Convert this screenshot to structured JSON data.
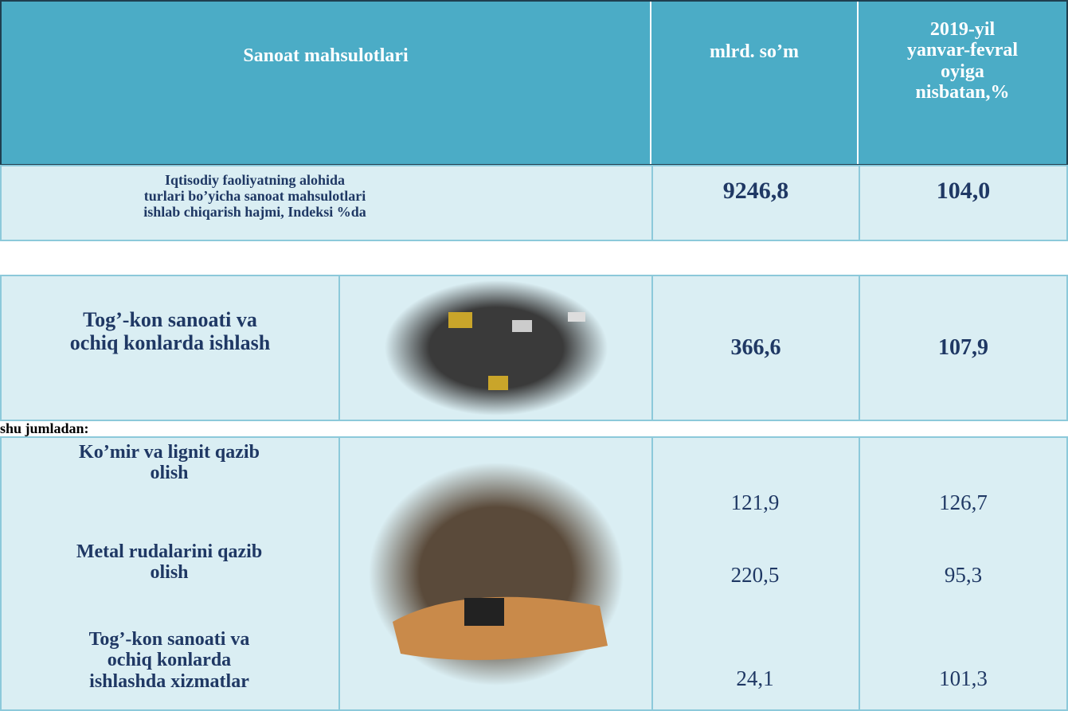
{
  "header": {
    "product": "Sanoat mahsulotlari",
    "unit": "mlrd. so’m",
    "index": [
      "2019-yil",
      "yanvar-fevral",
      "oyiga",
      "nisbatan,%"
    ]
  },
  "total": {
    "label": [
      "Iqtisodiy faoliyatning alohida",
      "turlari bo’yicha sanoat mahsulotlari",
      "ishlab chiqarish hajmi, Indeksi %da"
    ],
    "value": "9246,8",
    "index": "104,0"
  },
  "mining": {
    "label": [
      "Tog’-kon sanoati va",
      "ochiq konlarda ishlash"
    ],
    "value": "366,6",
    "index": "107,9"
  },
  "subheading": "shu jumladan:",
  "items": [
    {
      "label": [
        "Ko’mir va lignit qazib",
        "olish"
      ],
      "value": "121,9",
      "index": "126,7"
    },
    {
      "label": [
        "Metal rudalarini qazib",
        "olish"
      ],
      "value": "220,5",
      "index": "95,3"
    },
    {
      "label": [
        "Tog’-kon sanoati va",
        "ochiq konlarda",
        "ishlashda xizmatlar"
      ],
      "value": "24,1",
      "index": "101,3"
    }
  ]
}
